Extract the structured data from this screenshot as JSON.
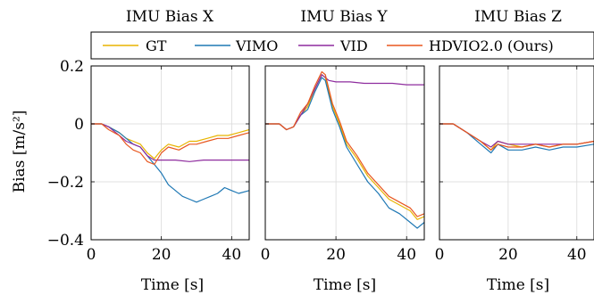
{
  "legend": {
    "placement": "top",
    "entries": [
      {
        "name": "GT",
        "color": "#e8b400"
      },
      {
        "name": "VIMO",
        "color": "#1f78b4"
      },
      {
        "name": "VID",
        "color": "#8e2c9e"
      },
      {
        "name": "HDVIO2.0 (Ours)",
        "color": "#e8571f"
      }
    ]
  },
  "shared": {
    "ylabel": "Bias [m/s²]",
    "ylim": [
      -0.4,
      0.2
    ],
    "yticks": [
      0.2,
      0,
      -0.2,
      -0.4
    ],
    "ytick_labels": [
      "0.2",
      "0",
      "−0.2",
      "−0.4"
    ],
    "xlim": [
      0,
      45
    ],
    "xticks": [
      0,
      20,
      40
    ],
    "xtick_labels": [
      "0",
      "20",
      "40"
    ],
    "xlabel": "Time [s]",
    "grid": true
  },
  "chart_data": [
    {
      "type": "line",
      "title": "IMU Bias X",
      "xlabel": "Time [s]",
      "ylabel": "Bias [m/s²]",
      "xlim": [
        0,
        45
      ],
      "ylim": [
        -0.4,
        0.2
      ],
      "grid": true,
      "series": [
        {
          "name": "GT",
          "color": "#e8b400",
          "points": [
            [
              0,
              0
            ],
            [
              3,
              0
            ],
            [
              5,
              -0.01
            ],
            [
              8,
              -0.03
            ],
            [
              10,
              -0.05
            ],
            [
              12,
              -0.06
            ],
            [
              14,
              -0.07
            ],
            [
              16,
              -0.1
            ],
            [
              18,
              -0.12
            ],
            [
              20,
              -0.09
            ],
            [
              22,
              -0.07
            ],
            [
              25,
              -0.08
            ],
            [
              28,
              -0.06
            ],
            [
              30,
              -0.06
            ],
            [
              33,
              -0.05
            ],
            [
              36,
              -0.04
            ],
            [
              39,
              -0.04
            ],
            [
              42,
              -0.03
            ],
            [
              45,
              -0.02
            ]
          ]
        },
        {
          "name": "VIMO",
          "color": "#1f78b4",
          "points": [
            [
              0,
              0
            ],
            [
              3,
              0
            ],
            [
              5,
              -0.01
            ],
            [
              8,
              -0.03
            ],
            [
              10,
              -0.05
            ],
            [
              12,
              -0.07
            ],
            [
              14,
              -0.08
            ],
            [
              16,
              -0.11
            ],
            [
              18,
              -0.14
            ],
            [
              20,
              -0.17
            ],
            [
              22,
              -0.21
            ],
            [
              24,
              -0.23
            ],
            [
              26,
              -0.25
            ],
            [
              28,
              -0.26
            ],
            [
              30,
              -0.27
            ],
            [
              32,
              -0.26
            ],
            [
              34,
              -0.25
            ],
            [
              36,
              -0.24
            ],
            [
              38,
              -0.22
            ],
            [
              40,
              -0.23
            ],
            [
              42,
              -0.24
            ],
            [
              45,
              -0.23
            ]
          ]
        },
        {
          "name": "VID",
          "color": "#8e2c9e",
          "points": [
            [
              0,
              0
            ],
            [
              3,
              0
            ],
            [
              5,
              -0.01
            ],
            [
              8,
              -0.04
            ],
            [
              10,
              -0.06
            ],
            [
              12,
              -0.07
            ],
            [
              14,
              -0.08
            ],
            [
              16,
              -0.11
            ],
            [
              18,
              -0.125
            ],
            [
              20,
              -0.125
            ],
            [
              24,
              -0.125
            ],
            [
              28,
              -0.13
            ],
            [
              32,
              -0.125
            ],
            [
              36,
              -0.125
            ],
            [
              40,
              -0.125
            ],
            [
              45,
              -0.125
            ]
          ]
        },
        {
          "name": "HDVIO2.0 (Ours)",
          "color": "#e8571f",
          "points": [
            [
              0,
              0
            ],
            [
              3,
              0
            ],
            [
              5,
              -0.02
            ],
            [
              8,
              -0.04
            ],
            [
              10,
              -0.07
            ],
            [
              12,
              -0.09
            ],
            [
              14,
              -0.1
            ],
            [
              16,
              -0.13
            ],
            [
              18,
              -0.14
            ],
            [
              20,
              -0.1
            ],
            [
              22,
              -0.08
            ],
            [
              25,
              -0.09
            ],
            [
              28,
              -0.07
            ],
            [
              30,
              -0.07
            ],
            [
              33,
              -0.06
            ],
            [
              36,
              -0.05
            ],
            [
              39,
              -0.05
            ],
            [
              42,
              -0.04
            ],
            [
              45,
              -0.03
            ]
          ]
        }
      ]
    },
    {
      "type": "line",
      "title": "IMU Bias Y",
      "xlabel": "Time [s]",
      "xlim": [
        0,
        45
      ],
      "ylim": [
        -0.4,
        0.2
      ],
      "grid": true,
      "series": [
        {
          "name": "GT",
          "color": "#e8b400",
          "points": [
            [
              0,
              0
            ],
            [
              4,
              0
            ],
            [
              6,
              -0.02
            ],
            [
              8,
              -0.01
            ],
            [
              10,
              0.03
            ],
            [
              12,
              0.06
            ],
            [
              14,
              0.12
            ],
            [
              16,
              0.17
            ],
            [
              17,
              0.16
            ],
            [
              19,
              0.06
            ],
            [
              21,
              0
            ],
            [
              23,
              -0.07
            ],
            [
              26,
              -0.12
            ],
            [
              29,
              -0.18
            ],
            [
              32,
              -0.22
            ],
            [
              35,
              -0.26
            ],
            [
              38,
              -0.28
            ],
            [
              41,
              -0.3
            ],
            [
              43,
              -0.33
            ],
            [
              45,
              -0.32
            ]
          ]
        },
        {
          "name": "VIMO",
          "color": "#1f78b4",
          "points": [
            [
              0,
              0
            ],
            [
              4,
              0
            ],
            [
              6,
              -0.02
            ],
            [
              8,
              -0.01
            ],
            [
              10,
              0.03
            ],
            [
              12,
              0.05
            ],
            [
              14,
              0.11
            ],
            [
              16,
              0.16
            ],
            [
              17,
              0.15
            ],
            [
              19,
              0.05
            ],
            [
              21,
              -0.01
            ],
            [
              23,
              -0.08
            ],
            [
              26,
              -0.14
            ],
            [
              29,
              -0.2
            ],
            [
              32,
              -0.24
            ],
            [
              35,
              -0.29
            ],
            [
              38,
              -0.31
            ],
            [
              41,
              -0.34
            ],
            [
              43,
              -0.36
            ],
            [
              45,
              -0.34
            ]
          ]
        },
        {
          "name": "VID",
          "color": "#8e2c9e",
          "points": [
            [
              0,
              0
            ],
            [
              4,
              0
            ],
            [
              6,
              -0.02
            ],
            [
              8,
              -0.01
            ],
            [
              10,
              0.03
            ],
            [
              12,
              0.07
            ],
            [
              14,
              0.12
            ],
            [
              16,
              0.17
            ],
            [
              18,
              0.15
            ],
            [
              20,
              0.145
            ],
            [
              24,
              0.145
            ],
            [
              28,
              0.14
            ],
            [
              32,
              0.14
            ],
            [
              36,
              0.14
            ],
            [
              40,
              0.135
            ],
            [
              45,
              0.135
            ]
          ]
        },
        {
          "name": "HDVIO2.0 (Ours)",
          "color": "#e8571f",
          "points": [
            [
              0,
              0
            ],
            [
              4,
              0
            ],
            [
              6,
              -0.02
            ],
            [
              8,
              -0.01
            ],
            [
              10,
              0.04
            ],
            [
              12,
              0.07
            ],
            [
              14,
              0.13
            ],
            [
              16,
              0.18
            ],
            [
              17,
              0.17
            ],
            [
              19,
              0.07
            ],
            [
              21,
              0.01
            ],
            [
              23,
              -0.06
            ],
            [
              26,
              -0.11
            ],
            [
              29,
              -0.17
            ],
            [
              32,
              -0.21
            ],
            [
              35,
              -0.25
            ],
            [
              38,
              -0.27
            ],
            [
              41,
              -0.29
            ],
            [
              43,
              -0.32
            ],
            [
              45,
              -0.31
            ]
          ]
        }
      ]
    },
    {
      "type": "line",
      "title": "IMU Bias Z",
      "xlabel": "Time [s]",
      "xlim": [
        0,
        45
      ],
      "ylim": [
        -0.4,
        0.2
      ],
      "grid": true,
      "series": [
        {
          "name": "GT",
          "color": "#e8b400",
          "points": [
            [
              0,
              0
            ],
            [
              4,
              0
            ],
            [
              8,
              -0.03
            ],
            [
              12,
              -0.06
            ],
            [
              15,
              -0.09
            ],
            [
              17,
              -0.06
            ],
            [
              20,
              -0.07
            ],
            [
              24,
              -0.08
            ],
            [
              28,
              -0.07
            ],
            [
              32,
              -0.08
            ],
            [
              36,
              -0.07
            ],
            [
              40,
              -0.07
            ],
            [
              45,
              -0.06
            ]
          ]
        },
        {
          "name": "VIMO",
          "color": "#1f78b4",
          "points": [
            [
              0,
              0
            ],
            [
              4,
              0
            ],
            [
              8,
              -0.03
            ],
            [
              12,
              -0.07
            ],
            [
              15,
              -0.1
            ],
            [
              17,
              -0.07
            ],
            [
              20,
              -0.09
            ],
            [
              24,
              -0.09
            ],
            [
              28,
              -0.08
            ],
            [
              32,
              -0.09
            ],
            [
              36,
              -0.08
            ],
            [
              40,
              -0.08
            ],
            [
              45,
              -0.07
            ]
          ]
        },
        {
          "name": "VID",
          "color": "#8e2c9e",
          "points": [
            [
              0,
              0
            ],
            [
              4,
              0
            ],
            [
              8,
              -0.03
            ],
            [
              12,
              -0.06
            ],
            [
              15,
              -0.08
            ],
            [
              17,
              -0.06
            ],
            [
              20,
              -0.07
            ],
            [
              24,
              -0.07
            ],
            [
              28,
              -0.07
            ],
            [
              32,
              -0.07
            ],
            [
              36,
              -0.07
            ],
            [
              40,
              -0.07
            ],
            [
              45,
              -0.06
            ]
          ]
        },
        {
          "name": "HDVIO2.0 (Ours)",
          "color": "#e8571f",
          "points": [
            [
              0,
              0
            ],
            [
              4,
              0
            ],
            [
              8,
              -0.03
            ],
            [
              12,
              -0.06
            ],
            [
              15,
              -0.09
            ],
            [
              17,
              -0.07
            ],
            [
              20,
              -0.08
            ],
            [
              24,
              -0.08
            ],
            [
              28,
              -0.07
            ],
            [
              32,
              -0.08
            ],
            [
              36,
              -0.07
            ],
            [
              40,
              -0.07
            ],
            [
              45,
              -0.06
            ]
          ]
        }
      ]
    }
  ]
}
